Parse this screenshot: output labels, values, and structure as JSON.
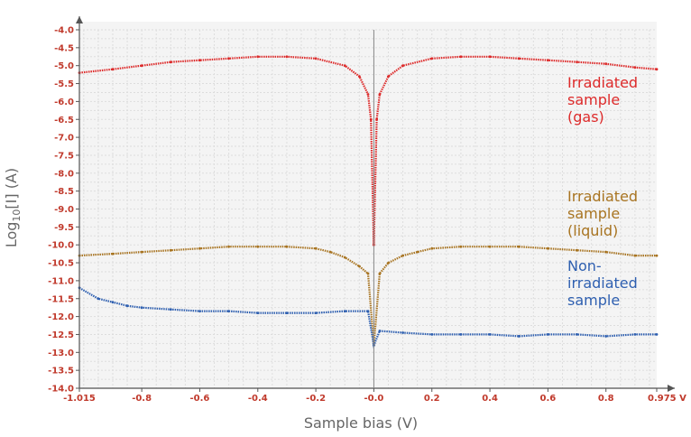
{
  "chart_data": {
    "type": "scatter",
    "title": "",
    "xlabel": "Sample bias (V)",
    "ylabel": "Log",
    "ylabel_sub": "10",
    "ylabel_rest": "[I] (A)",
    "xlim": [
      -1.015,
      0.975
    ],
    "ylim": [
      -14.0,
      -4.0
    ],
    "x_ticks": [
      {
        "value": -1.015,
        "label": "-1.015"
      },
      {
        "value": -0.8,
        "label": "-0.8"
      },
      {
        "value": -0.6,
        "label": "-0.6"
      },
      {
        "value": -0.4,
        "label": "-0.4"
      },
      {
        "value": -0.2,
        "label": "-0.2"
      },
      {
        "value": 0.0,
        "label": "-0.0"
      },
      {
        "value": 0.2,
        "label": "0.2"
      },
      {
        "value": 0.4,
        "label": "0.4"
      },
      {
        "value": 0.6,
        "label": "0.6"
      },
      {
        "value": 0.8,
        "label": "0.8"
      },
      {
        "value": 0.975,
        "label": "0.975 V"
      }
    ],
    "y_ticks": [
      {
        "value": -4.0,
        "label": "-4.0"
      },
      {
        "value": -4.5,
        "label": "-4.5"
      },
      {
        "value": -5.0,
        "label": "-5.0"
      },
      {
        "value": -5.5,
        "label": "-5.5"
      },
      {
        "value": -6.0,
        "label": "-6.0"
      },
      {
        "value": -6.5,
        "label": "-6.5"
      },
      {
        "value": -7.0,
        "label": "-7.0"
      },
      {
        "value": -7.5,
        "label": "-7.5"
      },
      {
        "value": -8.0,
        "label": "-8.0"
      },
      {
        "value": -8.5,
        "label": "-8.5"
      },
      {
        "value": -9.0,
        "label": "-9.0"
      },
      {
        "value": -9.5,
        "label": "-9.5"
      },
      {
        "value": -10.0,
        "label": "-10.0"
      },
      {
        "value": -10.5,
        "label": "-10.5"
      },
      {
        "value": -11.0,
        "label": "-11.0"
      },
      {
        "value": -11.5,
        "label": "-11.5"
      },
      {
        "value": -12.0,
        "label": "-12.0"
      },
      {
        "value": -12.5,
        "label": "-12.5"
      },
      {
        "value": -13.0,
        "label": "-13.0"
      },
      {
        "value": -13.5,
        "label": "-13.5"
      },
      {
        "value": -14.0,
        "label": "-14.0"
      }
    ],
    "grid": true,
    "series": [
      {
        "color": "#dd2a2a",
        "annotation": [
          "Irradiated",
          "sample",
          "(gas)"
        ],
        "x": [
          -1.015,
          -0.9,
          -0.8,
          -0.7,
          -0.6,
          -0.5,
          -0.4,
          -0.3,
          -0.2,
          -0.1,
          -0.05,
          -0.02,
          -0.01,
          0.0,
          0.01,
          0.02,
          0.05,
          0.1,
          0.2,
          0.3,
          0.4,
          0.5,
          0.6,
          0.7,
          0.8,
          0.9,
          0.975
        ],
        "y": [
          -5.2,
          -5.1,
          -5.0,
          -4.9,
          -4.85,
          -4.8,
          -4.75,
          -4.75,
          -4.8,
          -5.0,
          -5.3,
          -5.8,
          -6.5,
          -10.0,
          -6.5,
          -5.8,
          -5.3,
          -5.0,
          -4.8,
          -4.75,
          -4.75,
          -4.8,
          -4.85,
          -4.9,
          -4.95,
          -5.05,
          -5.1
        ]
      },
      {
        "color": "#a87421",
        "annotation": [
          "Irradiated",
          "sample",
          "(liquid)"
        ],
        "x": [
          -1.015,
          -0.9,
          -0.8,
          -0.7,
          -0.6,
          -0.5,
          -0.4,
          -0.3,
          -0.2,
          -0.15,
          -0.1,
          -0.05,
          -0.02,
          0.0,
          0.02,
          0.05,
          0.1,
          0.15,
          0.2,
          0.3,
          0.4,
          0.5,
          0.6,
          0.7,
          0.8,
          0.9,
          0.975
        ],
        "y": [
          -10.3,
          -10.25,
          -10.2,
          -10.15,
          -10.1,
          -10.05,
          -10.05,
          -10.05,
          -10.1,
          -10.2,
          -10.35,
          -10.6,
          -10.8,
          -12.8,
          -10.8,
          -10.5,
          -10.3,
          -10.2,
          -10.1,
          -10.05,
          -10.05,
          -10.05,
          -10.1,
          -10.15,
          -10.2,
          -10.3,
          -10.3
        ]
      },
      {
        "color": "#2e5fb0",
        "annotation": [
          "Non-",
          "irradiated",
          "sample"
        ],
        "x": [
          -1.015,
          -0.95,
          -0.9,
          -0.85,
          -0.8,
          -0.7,
          -0.6,
          -0.5,
          -0.4,
          -0.3,
          -0.2,
          -0.1,
          -0.02,
          0.0,
          0.02,
          0.1,
          0.2,
          0.3,
          0.4,
          0.5,
          0.6,
          0.7,
          0.8,
          0.9,
          0.975
        ],
        "y": [
          -11.2,
          -11.5,
          -11.6,
          -11.7,
          -11.75,
          -11.8,
          -11.85,
          -11.85,
          -11.9,
          -11.9,
          -11.9,
          -11.85,
          -11.85,
          -12.8,
          -12.4,
          -12.45,
          -12.5,
          -12.5,
          -12.5,
          -12.55,
          -12.5,
          -12.5,
          -12.55,
          -12.5,
          -12.5
        ]
      }
    ]
  }
}
